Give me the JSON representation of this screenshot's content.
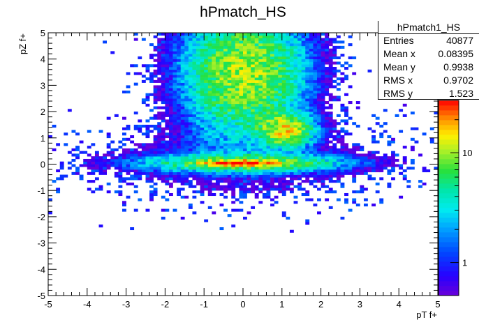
{
  "figure": {
    "title": "hPmatch_HS"
  },
  "stats_box": {
    "name": "hPmatch1_HS",
    "rows": [
      {
        "label": "Entries",
        "value": "40877"
      },
      {
        "label": "Mean x",
        "value": "0.08395"
      },
      {
        "label": "Mean y",
        "value": "0.9938"
      },
      {
        "label": "RMS x",
        "value": "0.9702"
      },
      {
        "label": "RMS y",
        "value": "1.523"
      }
    ]
  },
  "colors": {
    "low": "#6a00d8",
    "mid": "#33ccff",
    "high": "#ff0000",
    "top": "#ffff33"
  },
  "chart_data": {
    "type": "heatmap",
    "title": "hPmatch_HS",
    "xlabel": "pT f+",
    "ylabel": "pZ f+",
    "xlim": [
      -5,
      5
    ],
    "ylim": [
      -5,
      5
    ],
    "x_ticks": [
      "-5",
      "-4",
      "-3",
      "-2",
      "-1",
      "0",
      "1",
      "2",
      "3",
      "4",
      "5"
    ],
    "y_ticks": [
      "-5",
      "-4",
      "-3",
      "-2",
      "-1",
      "0",
      "1",
      "2",
      "3",
      "4",
      "5"
    ],
    "colorbar": {
      "scale": "log",
      "tick_labels": [
        "1",
        "10"
      ],
      "range": [
        0.5,
        30
      ]
    },
    "entries": 40877,
    "regions": [
      {
        "name": "core",
        "x_center": -0.1,
        "y_center": 0.05,
        "x_sigma": 0.55,
        "y_sigma": 0.06,
        "peak": 30
      },
      {
        "name": "horizontal band",
        "x_center": 0.0,
        "y_center": 0.05,
        "x_sigma": 1.5,
        "y_sigma": 0.2,
        "peak": 9
      },
      {
        "name": "vertical column",
        "x_center": 0.05,
        "y_center": 3.5,
        "x_sigma": 0.9,
        "y_sigma": 1.4,
        "peak": 11
      },
      {
        "name": "secondary lobe",
        "x_center": 1.1,
        "y_center": 1.3,
        "x_sigma": 0.4,
        "y_sigma": 0.35,
        "peak": 14
      }
    ]
  }
}
